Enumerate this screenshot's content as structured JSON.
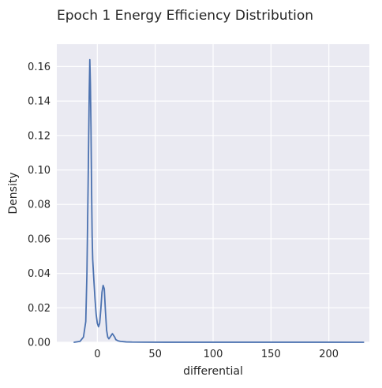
{
  "chart_data": {
    "type": "line",
    "title": "Epoch 1 Energy Efficiency Distribution",
    "xlabel": "differential",
    "ylabel": "Density",
    "xlim": [
      -35,
      235
    ],
    "ylim": [
      0,
      0.173
    ],
    "grid": true,
    "x_ticks": [
      0,
      50,
      100,
      150,
      200
    ],
    "x_tick_labels": [
      "0",
      "50",
      "100",
      "150",
      "200"
    ],
    "y_ticks": [
      0.0,
      0.02,
      0.04,
      0.06,
      0.08,
      0.1,
      0.12,
      0.14,
      0.16
    ],
    "y_tick_labels": [
      "0.00",
      "0.02",
      "0.04",
      "0.06",
      "0.08",
      "0.10",
      "0.12",
      "0.14",
      "0.16"
    ],
    "colors": {
      "line": "#4c72b0",
      "background": "#eaeaf2",
      "grid": "#ffffff"
    },
    "series": [
      {
        "x": [
          -20,
          -15,
          -12,
          -10,
          -9,
          -8,
          -7,
          -6.5,
          -6,
          -5.5,
          -5,
          -4.5,
          -4,
          -3,
          -2,
          -1,
          0,
          1,
          2,
          3,
          4,
          5,
          6,
          7,
          8,
          9,
          10,
          11,
          12,
          13,
          14,
          15,
          16,
          18,
          20,
          25,
          30,
          40,
          60,
          100,
          150,
          200,
          230
        ],
        "y": [
          0.0,
          0.0005,
          0.003,
          0.012,
          0.04,
          0.09,
          0.145,
          0.164,
          0.15,
          0.125,
          0.09,
          0.062,
          0.048,
          0.036,
          0.025,
          0.016,
          0.011,
          0.009,
          0.011,
          0.019,
          0.029,
          0.033,
          0.031,
          0.018,
          0.007,
          0.003,
          0.002,
          0.003,
          0.004,
          0.005,
          0.004,
          0.003,
          0.0015,
          0.0008,
          0.0005,
          0.0002,
          0.0001,
          5e-05,
          3e-05,
          2e-05,
          2e-05,
          2e-05,
          0.0
        ]
      }
    ]
  }
}
